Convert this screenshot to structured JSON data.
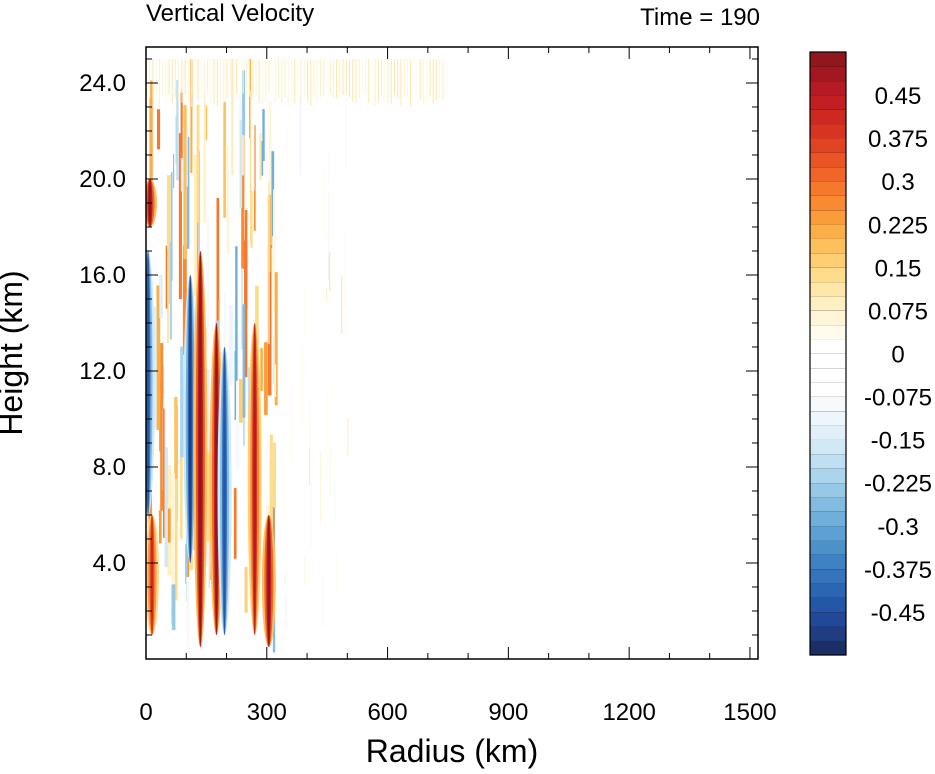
{
  "chart_data": {
    "type": "heatmap",
    "title": "Vertical Velocity",
    "time_label": "Time = 190",
    "xlabel": "Radius (km)",
    "ylabel": "Height (km)",
    "xlim": [
      0,
      1520
    ],
    "ylim": [
      0,
      25.5
    ],
    "x_ticks": [
      0,
      300,
      600,
      900,
      1200,
      1500
    ],
    "x_tick_labels": [
      "0",
      "300",
      "600",
      "900",
      "1200",
      "1500"
    ],
    "y_ticks": [
      4,
      8,
      12,
      16,
      20,
      24
    ],
    "y_tick_labels": [
      "4.0",
      "8.0",
      "12.0",
      "16.0",
      "20.0",
      "24.0"
    ],
    "colorbar": {
      "levels": [
        -0.525,
        -0.5,
        -0.475,
        -0.45,
        -0.425,
        -0.4,
        -0.375,
        -0.35,
        -0.325,
        -0.3,
        -0.275,
        -0.25,
        -0.225,
        -0.2,
        -0.175,
        -0.15,
        -0.125,
        -0.1,
        -0.075,
        -0.05,
        -0.025,
        0,
        0.025,
        0.05,
        0.075,
        0.1,
        0.125,
        0.15,
        0.175,
        0.2,
        0.225,
        0.25,
        0.275,
        0.3,
        0.325,
        0.35,
        0.375,
        0.4,
        0.425,
        0.45,
        0.475,
        0.5,
        0.525
      ],
      "labels": [
        "0.45",
        "0.375",
        "0.3",
        "0.225",
        "0.15",
        "0.075",
        "0",
        "-0.075",
        "-0.15",
        "-0.225",
        "-0.3",
        "-0.375",
        "-0.45"
      ],
      "label_values": [
        0.45,
        0.375,
        0.3,
        0.225,
        0.15,
        0.075,
        0,
        -0.075,
        -0.15,
        -0.225,
        -0.3,
        -0.375,
        -0.45
      ],
      "colors": [
        "#1b2f66",
        "#1f3d80",
        "#22489a",
        "#2457a8",
        "#2b66b2",
        "#3574bb",
        "#3f82c3",
        "#4d91cb",
        "#5ea0d3",
        "#70afda",
        "#83bce0",
        "#97c9e6",
        "#abd5ec",
        "#bfdff2",
        "#d1e8f5",
        "#e1f0f8",
        "#edf6fb",
        "#f6fafd",
        "#ffffff",
        "#ffffff",
        "#ffffff",
        "#ffffff",
        "#fffcee",
        "#fff6d9",
        "#fff0c2",
        "#fee7a8",
        "#fddc8c",
        "#fdcf72",
        "#fcc05c",
        "#fcae48",
        "#fb9c3b",
        "#f98a32",
        "#f5782d",
        "#f06628",
        "#e95525",
        "#e14423",
        "#d93421",
        "#cf2821",
        "#c21f22",
        "#b41b22",
        "#a31820",
        "#8f171d"
      ]
    },
    "field_features": [
      {
        "kind": "downdraft",
        "r": 5,
        "z_range": [
          6,
          17
        ],
        "value": -0.45
      },
      {
        "kind": "updraft",
        "r": 10,
        "z_range": [
          18,
          20
        ],
        "value": 0.5
      },
      {
        "kind": "updraft",
        "r": 15,
        "z_range": [
          1,
          6
        ],
        "value": 0.4
      },
      {
        "kind": "downdraft",
        "r": 110,
        "z_range": [
          4,
          16
        ],
        "value": -0.5
      },
      {
        "kind": "updraft",
        "r": 135,
        "z_range": [
          0.5,
          17
        ],
        "value": 0.55
      },
      {
        "kind": "updraft",
        "r": 175,
        "z_range": [
          1,
          14
        ],
        "value": 0.5
      },
      {
        "kind": "downdraft",
        "r": 195,
        "z_range": [
          1,
          13
        ],
        "value": -0.45
      },
      {
        "kind": "updraft",
        "r": 270,
        "z_range": [
          1,
          14
        ],
        "value": 0.45
      },
      {
        "kind": "updraft",
        "r": 305,
        "z_range": [
          0.5,
          6
        ],
        "value": 0.5
      },
      {
        "kind": "weak_stripes",
        "r_range": [
          0,
          740
        ],
        "z_range": [
          23,
          25
        ],
        "value": 0.08
      }
    ]
  }
}
